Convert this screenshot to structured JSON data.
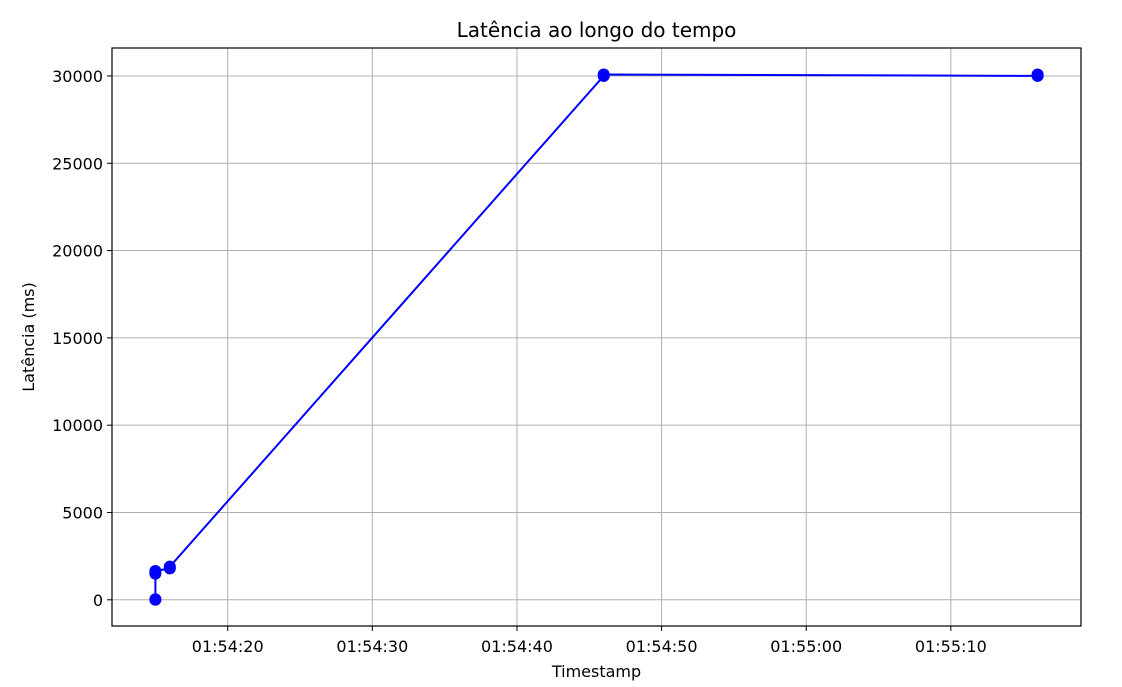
{
  "chart_data": {
    "type": "line",
    "title": "Latência ao longo do tempo",
    "xlabel": "Timestamp",
    "ylabel": "Latência (ms)",
    "x_ticks": [
      "01:54:20",
      "01:54:30",
      "01:54:40",
      "01:54:50",
      "01:55:00",
      "01:55:10"
    ],
    "y_ticks": [
      "0",
      "5000",
      "10000",
      "15000",
      "20000",
      "25000",
      "30000"
    ],
    "xlim": [
      "01:54:12",
      "01:55:19"
    ],
    "ylim": [
      -1500,
      31600
    ],
    "grid": true,
    "series": [
      {
        "color": "#0000ff",
        "marker": "circle",
        "points": [
          {
            "x": "01:54:15",
            "y": 0
          },
          {
            "x": "01:54:15",
            "y": 30
          },
          {
            "x": "01:54:15",
            "y": 1500
          },
          {
            "x": "01:54:15",
            "y": 1650
          },
          {
            "x": "01:54:16",
            "y": 1800
          },
          {
            "x": "01:54:16",
            "y": 1900
          },
          {
            "x": "01:54:46",
            "y": 30000
          },
          {
            "x": "01:54:46",
            "y": 30080
          },
          {
            "x": "01:55:16",
            "y": 30000
          },
          {
            "x": "01:55:16",
            "y": 30080
          }
        ]
      }
    ]
  }
}
